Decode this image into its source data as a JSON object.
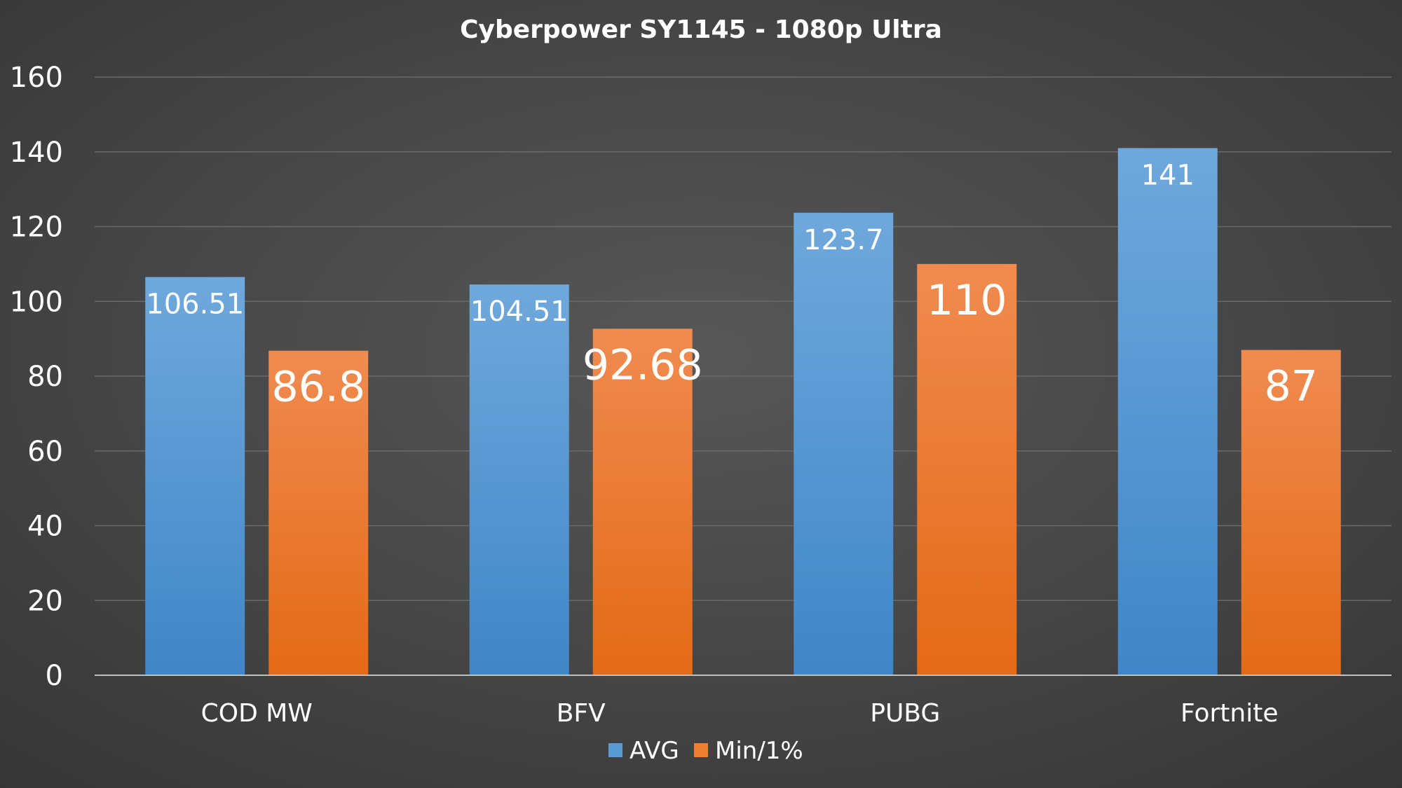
{
  "chart_data": {
    "type": "bar",
    "title": "Cyberpower SY1145 - 1080p Ultra",
    "xlabel": "",
    "ylabel": "",
    "categories": [
      "COD MW",
      "BFV",
      "PUBG",
      "Fortnite"
    ],
    "series": [
      {
        "name": "AVG",
        "values": [
          106.51,
          104.51,
          123.7,
          141
        ],
        "color": "#5B9BD5"
      },
      {
        "name": "Min/1%",
        "values": [
          86.8,
          92.68,
          110,
          87
        ],
        "color": "#ED7D31"
      }
    ],
    "ylim": [
      0,
      160
    ],
    "yticks": [
      0,
      20,
      40,
      60,
      80,
      100,
      120,
      140,
      160
    ],
    "grid": true,
    "legend": "bottom",
    "data_labels": true,
    "background": "#474747"
  }
}
